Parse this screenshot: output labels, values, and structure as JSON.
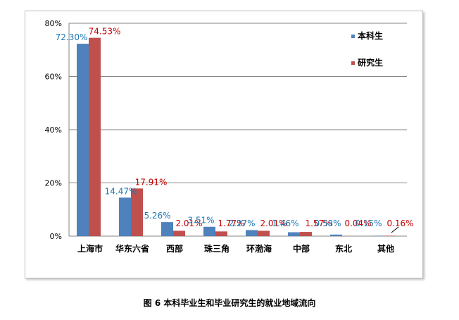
{
  "caption": "图 6   本科毕业生和毕业研究生的就业地域流向",
  "chart_data": {
    "type": "bar",
    "categories": [
      "上海市",
      "华东六省",
      "西部",
      "珠三角",
      "环渤海",
      "中部",
      "东北",
      "其他"
    ],
    "series": [
      {
        "name": "本科生",
        "color": "#4f81bd",
        "label_color": "#1f77b4",
        "values": [
          72.3,
          14.47,
          5.26,
          3.51,
          2.27,
          1.46,
          0.58,
          0.15
        ],
        "labels": [
          "72.30%",
          "14.47%",
          "5.26%",
          "3.51%",
          "2.27%",
          "1.46%",
          "0.58%",
          "0.15%"
        ]
      },
      {
        "name": "研究生",
        "color": "#c0504d",
        "label_color": "#c00000",
        "values": [
          74.53,
          17.91,
          2.01,
          1.77,
          2.01,
          1.57,
          0.04,
          0.16
        ],
        "labels": [
          "74.53%",
          "17.91%",
          "2.01%",
          "1.77%",
          "2.01%",
          "1.57%",
          "0.04%",
          "0.16%"
        ]
      }
    ],
    "y_ticks": [
      "0%",
      "20%",
      "40%",
      "60%",
      "80%"
    ],
    "ylim": [
      0,
      80
    ],
    "grid": true,
    "legend": "top-right",
    "title": "",
    "xlabel": "",
    "ylabel": ""
  }
}
